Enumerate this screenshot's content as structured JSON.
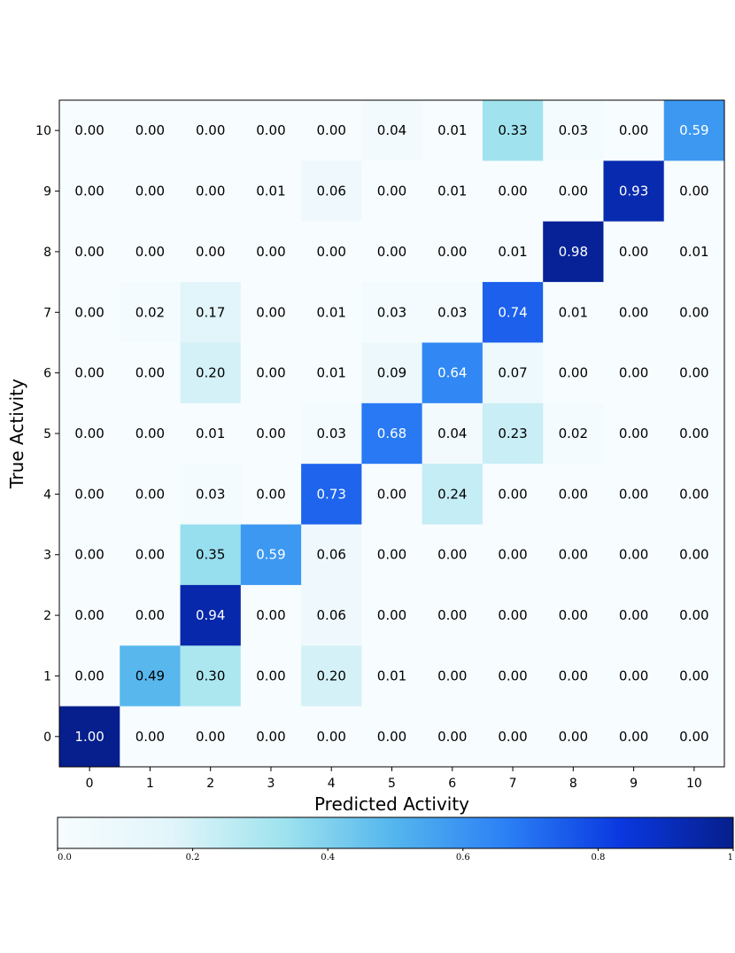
{
  "chart_data": {
    "type": "heatmap",
    "title": "",
    "xlabel": "Predicted Activity",
    "ylabel": "True Activity",
    "x_categories": [
      "0",
      "1",
      "2",
      "3",
      "4",
      "5",
      "6",
      "7",
      "8",
      "9",
      "10"
    ],
    "y_categories": [
      "0",
      "1",
      "2",
      "3",
      "4",
      "5",
      "6",
      "7",
      "8",
      "9",
      "10"
    ],
    "value_range": [
      0,
      1
    ],
    "colorbar_ticks": [
      "0.0",
      "0.2",
      "0.4",
      "0.6",
      "0.8",
      "1"
    ],
    "colorbar_location": "bottom",
    "colormap_stops": [
      "#f7fcff",
      "#e2f5fa",
      "#9fe3ee",
      "#53b5ee",
      "#2b7ff5",
      "#0a38e0",
      "#061f8c"
    ],
    "rows_top_to_bottom": [
      {
        "true": "10",
        "values": [
          0.0,
          0.0,
          0.0,
          0.0,
          0.0,
          0.04,
          0.01,
          0.33,
          0.03,
          0.0,
          0.59
        ]
      },
      {
        "true": "9",
        "values": [
          0.0,
          0.0,
          0.0,
          0.01,
          0.06,
          0.0,
          0.01,
          0.0,
          0.0,
          0.93,
          0.0
        ]
      },
      {
        "true": "8",
        "values": [
          0.0,
          0.0,
          0.0,
          0.0,
          0.0,
          0.0,
          0.0,
          0.01,
          0.98,
          0.0,
          0.01
        ]
      },
      {
        "true": "7",
        "values": [
          0.0,
          0.02,
          0.17,
          0.0,
          0.01,
          0.03,
          0.03,
          0.74,
          0.01,
          0.0,
          0.0
        ]
      },
      {
        "true": "6",
        "values": [
          0.0,
          0.0,
          0.2,
          0.0,
          0.01,
          0.09,
          0.64,
          0.07,
          0.0,
          0.0,
          0.0
        ]
      },
      {
        "true": "5",
        "values": [
          0.0,
          0.0,
          0.01,
          0.0,
          0.03,
          0.68,
          0.04,
          0.23,
          0.02,
          0.0,
          0.0
        ]
      },
      {
        "true": "4",
        "values": [
          0.0,
          0.0,
          0.03,
          0.0,
          0.73,
          0.0,
          0.24,
          0.0,
          0.0,
          0.0,
          0.0
        ]
      },
      {
        "true": "3",
        "values": [
          0.0,
          0.0,
          0.35,
          0.59,
          0.06,
          0.0,
          0.0,
          0.0,
          0.0,
          0.0,
          0.0
        ]
      },
      {
        "true": "2",
        "values": [
          0.0,
          0.0,
          0.94,
          0.0,
          0.06,
          0.0,
          0.0,
          0.0,
          0.0,
          0.0,
          0.0
        ]
      },
      {
        "true": "1",
        "values": [
          0.0,
          0.49,
          0.3,
          0.0,
          0.2,
          0.01,
          0.0,
          0.0,
          0.0,
          0.0,
          0.0
        ]
      },
      {
        "true": "0",
        "values": [
          1.0,
          0.0,
          0.0,
          0.0,
          0.0,
          0.0,
          0.0,
          0.0,
          0.0,
          0.0,
          0.0
        ]
      }
    ]
  }
}
